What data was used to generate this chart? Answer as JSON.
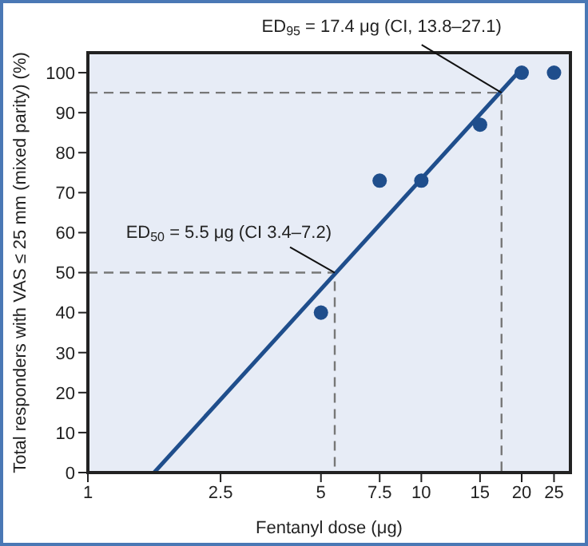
{
  "chart_data": {
    "type": "scatter",
    "xlabel": "Fentanyl dose (μg)",
    "ylabel": "Total responders with VAS ≤ 25 mm (mixed parity) (%)",
    "log": "x",
    "xlim": [
      1,
      28
    ],
    "xticks": [
      1,
      2.5,
      5,
      7.5,
      10,
      15,
      20,
      25
    ],
    "ylim": [
      0,
      105
    ],
    "yticks": [
      0,
      10,
      20,
      30,
      40,
      50,
      60,
      70,
      80,
      90,
      100
    ],
    "marker": "circle",
    "series": [
      {
        "color": "#777777",
        "type": "line",
        "marker": "none",
        "line_style": "dashed",
        "x": [
          1,
          5.5,
          5.5
        ],
        "values": [
          50,
          50,
          0
        ]
      },
      {
        "color": "#777777",
        "type": "line",
        "marker": "none",
        "line_style": "dashed",
        "x": [
          1,
          17.4,
          17.4
        ],
        "values": [
          95,
          95,
          0
        ]
      },
      {
        "color": "#1f4e8c",
        "x": [
          5,
          7.5,
          10,
          15,
          20,
          25
        ],
        "values": [
          40,
          73,
          73,
          87,
          100,
          100
        ]
      },
      {
        "type": "line",
        "color": "#1f4e8c",
        "marker": "none",
        "line_style": "solid",
        "x": [
          1.58,
          19.5
        ],
        "values": [
          0,
          100
        ]
      }
    ],
    "annotations": [
      {
        "text": "ED$_{50}$ = 5.5 μg (CI 3.4–7.2)",
        "x": 5.5,
        "y": 50
      },
      {
        "text": "ED$_{95}$ = 17.4 μg (CI, 13.8–27.1)",
        "x": 17.4,
        "y": 95
      }
    ]
  }
}
